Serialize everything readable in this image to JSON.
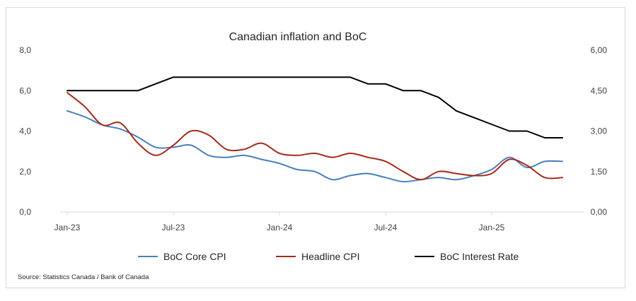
{
  "chart_data": {
    "type": "line",
    "title": "Canadian inflation and BoC",
    "source": "Source: Statistics Canada / Bank of Canada",
    "x_ticks": [
      "Jan-23",
      "Jul-23",
      "Jan-24",
      "Jul-24",
      "Jan-25"
    ],
    "y_left": {
      "ticks": [
        "0,0",
        "2,0",
        "4,0",
        "6,0",
        "8,0"
      ],
      "lim": [
        0,
        8
      ]
    },
    "y_right": {
      "ticks": [
        "0,00",
        "1,50",
        "3,00",
        "4,50",
        "6,00"
      ],
      "lim": [
        0,
        6
      ]
    },
    "grid": false,
    "legend_position": "bottom",
    "x": [
      "2023-01",
      "2023-02",
      "2023-03",
      "2023-04",
      "2023-05",
      "2023-06",
      "2023-07",
      "2023-08",
      "2023-09",
      "2023-10",
      "2023-11",
      "2023-12",
      "2024-01",
      "2024-02",
      "2024-03",
      "2024-04",
      "2024-05",
      "2024-06",
      "2024-07",
      "2024-08",
      "2024-09",
      "2024-10",
      "2024-11",
      "2024-12",
      "2025-01",
      "2025-02",
      "2025-03",
      "2025-04",
      "2025-05"
    ],
    "series": [
      {
        "name": "BoC Core CPI",
        "axis": "left",
        "color": "#4a7ebb",
        "values": [
          5.0,
          4.7,
          4.3,
          4.1,
          3.7,
          3.2,
          3.2,
          3.3,
          2.8,
          2.7,
          2.8,
          2.6,
          2.4,
          2.1,
          2.0,
          1.6,
          1.8,
          1.9,
          1.7,
          1.5,
          1.6,
          1.7,
          1.6,
          1.8,
          2.1,
          2.7,
          2.2,
          2.5,
          2.5
        ]
      },
      {
        "name": "Headline CPI",
        "axis": "left",
        "color": "#a52a1a",
        "values": [
          5.9,
          5.2,
          4.3,
          4.4,
          3.4,
          2.8,
          3.3,
          4.0,
          3.8,
          3.1,
          3.1,
          3.4,
          2.9,
          2.8,
          2.9,
          2.7,
          2.9,
          2.7,
          2.5,
          2.0,
          1.6,
          2.0,
          1.9,
          1.8,
          1.9,
          2.6,
          2.3,
          1.7,
          1.7
        ]
      },
      {
        "name": "BoC Interest Rate",
        "axis": "right",
        "color": "#000000",
        "values": [
          4.5,
          4.5,
          4.5,
          4.5,
          4.5,
          4.75,
          5.0,
          5.0,
          5.0,
          5.0,
          5.0,
          5.0,
          5.0,
          5.0,
          5.0,
          5.0,
          5.0,
          4.75,
          4.75,
          4.5,
          4.5,
          4.25,
          3.75,
          3.5,
          3.25,
          3.0,
          3.0,
          2.75,
          2.75
        ]
      }
    ]
  }
}
